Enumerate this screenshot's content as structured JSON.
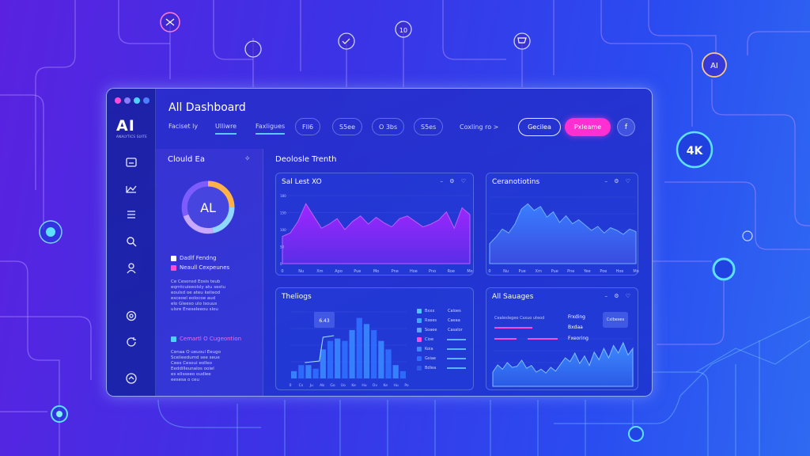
{
  "window": {
    "traffic_colors": [
      "#ff4bd6",
      "#8a7bff",
      "#4fd0ff",
      "#4f7dff"
    ]
  },
  "brand": {
    "logo": "AI",
    "tagline": "ANALYTICS SUITE"
  },
  "header": {
    "title": "All Dashboard",
    "tabs": [
      {
        "label": "Faciset ly"
      },
      {
        "label": "Ulliwre"
      },
      {
        "label": "Faxligues"
      }
    ],
    "pills": [
      "Fll6",
      "S5ee",
      "O 3bs",
      "S5es"
    ],
    "more_link": "Coxling ro >",
    "outline_button": "Gecilea",
    "primary_button": "Pxleame",
    "round_button": "f"
  },
  "sidebar": {
    "icons": [
      "folder-icon",
      "chart-icon",
      "list-icon",
      "search-icon",
      "user-icon",
      "settings-icon",
      "refresh-icon",
      "home-icon"
    ]
  },
  "left_panel": {
    "title": "Clould Ea",
    "pin_glyph": "✧",
    "donut_label": "AL",
    "donut_colors": [
      "#ffb347",
      "#8fd8ff",
      "#c9a8ff",
      "#7c5cff"
    ],
    "legend": [
      {
        "label": "Dadlf Fendng",
        "color": "#ffffff"
      },
      {
        "label": "Neaull Cexpeunes",
        "color": "#ff4bd6"
      }
    ],
    "body_lines": [
      "Ce Cesonsd Eosis teub",
      "eqmtcuieeolsly atu sestu",
      "eoulsd oe ateu kelieod",
      "esceoel eolocoe aud",
      "elo Gleeso ulo lsouus",
      "ulsre Eneseleeou slou"
    ],
    "highlight": "Cemartl O Cugeontion",
    "footer_lines": [
      "Cenaa O ueuoul Eeugo",
      "Sceiieedumd see seue",
      "Cees Cesoui eolleo",
      "Eeddilleunalos ooiel",
      "es elisseeo oudlee",
      "eesesa o ceu"
    ]
  },
  "main": {
    "section_title": "Deolosle Trenth",
    "cards": {
      "area1": {
        "title": "Sal Lest XO",
        "ctrls": "– ⚙ ♡",
        "y_ticks": [
          "180",
          "150",
          "100",
          "50",
          "0"
        ],
        "x_ticks": [
          "0",
          "Nu",
          "Xm",
          "Apo",
          "Pue",
          "Mo",
          "Pne",
          "Hoe",
          "Pno",
          "Roe",
          "Mo"
        ],
        "chart_data": {
          "type": "area",
          "x": [
            0,
            1,
            2,
            3,
            4,
            5,
            6,
            7,
            8,
            9,
            10,
            11,
            12,
            13,
            14,
            15,
            16,
            17,
            18,
            19,
            20,
            21,
            22,
            23,
            24
          ],
          "values": [
            40,
            45,
            62,
            88,
            70,
            52,
            58,
            66,
            50,
            62,
            70,
            58,
            68,
            60,
            54,
            66,
            70,
            62,
            54,
            58,
            64,
            76,
            52,
            82,
            72
          ],
          "ylim": [
            0,
            100
          ]
        }
      },
      "area2": {
        "title": "Ceranotiotins",
        "ctrls": "– ⚙ ♡",
        "x_ticks": [
          "0",
          "Nu",
          "Pue",
          "Xm",
          "Pue",
          "Pne",
          "Yee",
          "Poe",
          "Hoe",
          "Mo"
        ],
        "chart_data": {
          "type": "area",
          "x": [
            0,
            1,
            2,
            3,
            4,
            5,
            6,
            7,
            8,
            9,
            10,
            11,
            12,
            13,
            14,
            15,
            16,
            17,
            18,
            19,
            20,
            21,
            22,
            23
          ],
          "values": [
            30,
            40,
            52,
            46,
            60,
            82,
            90,
            80,
            86,
            70,
            78,
            62,
            72,
            60,
            66,
            58,
            50,
            56,
            46,
            54,
            50,
            44,
            52,
            48
          ],
          "ylim": [
            0,
            100
          ]
        }
      },
      "bars": {
        "title": "Theliogs",
        "callout": "6.43",
        "x_ticks": [
          "0",
          "Cs",
          "Ju",
          "Ab",
          "Go",
          "Uo",
          "Ke",
          "Hu",
          "Ov",
          "Ke",
          "Hu",
          "Po"
        ],
        "chart_data": {
          "type": "bar",
          "categories": [
            "1",
            "2",
            "3",
            "4",
            "5",
            "6",
            "7",
            "8",
            "9",
            "10",
            "11",
            "12",
            "13",
            "14",
            "15",
            "16"
          ],
          "values": [
            12,
            22,
            22,
            16,
            48,
            62,
            66,
            62,
            80,
            100,
            90,
            80,
            62,
            48,
            22,
            12
          ],
          "ylim": [
            0,
            110
          ]
        },
        "legend": [
          {
            "label": "Bxxx",
            "value": "Caloes",
            "color": "#4fc3ff"
          },
          {
            "label": "Rxees",
            "value": "Caeaa",
            "color": "#3fa6ff"
          },
          {
            "label": "Soaee",
            "value": "Casalor",
            "color": "#5fa4ff"
          },
          {
            "label": "Cioe",
            "value": "",
            "color": "#ff4bd6"
          },
          {
            "label": "Koia",
            "value": "",
            "color": "#3f86ff"
          },
          {
            "label": "Gsiae",
            "value": "",
            "color": "#2f6bff"
          },
          {
            "label": "Bdlea",
            "value": "",
            "color": "#2f5ae8"
          }
        ]
      },
      "savings": {
        "title": "All Sauages",
        "ctrls": "– ⚙ ♡",
        "subtitle": "Cealeslegeo Csxuo uteod",
        "labels": [
          "Frxding",
          "Bxdaa",
          "Fxeoring"
        ],
        "badge": "Cxlbexes",
        "chart_data": {
          "type": "area",
          "x": [
            0,
            1,
            2,
            3,
            4,
            5,
            6,
            7,
            8,
            9,
            10,
            11,
            12,
            13,
            14,
            15,
            16,
            17,
            18,
            19,
            20,
            21,
            22,
            23,
            24,
            25,
            26,
            27,
            28,
            29
          ],
          "values": [
            30,
            45,
            36,
            50,
            40,
            42,
            55,
            38,
            44,
            30,
            36,
            28,
            40,
            32,
            46,
            60,
            52,
            70,
            48,
            64,
            44,
            72,
            56,
            80,
            60,
            86,
            70,
            92,
            66,
            80
          ],
          "ylim": [
            0,
            100
          ]
        }
      }
    }
  },
  "background": {
    "nodes": [
      {
        "label": "AI"
      },
      {
        "label": "4K"
      },
      {
        "label": "10"
      }
    ]
  }
}
